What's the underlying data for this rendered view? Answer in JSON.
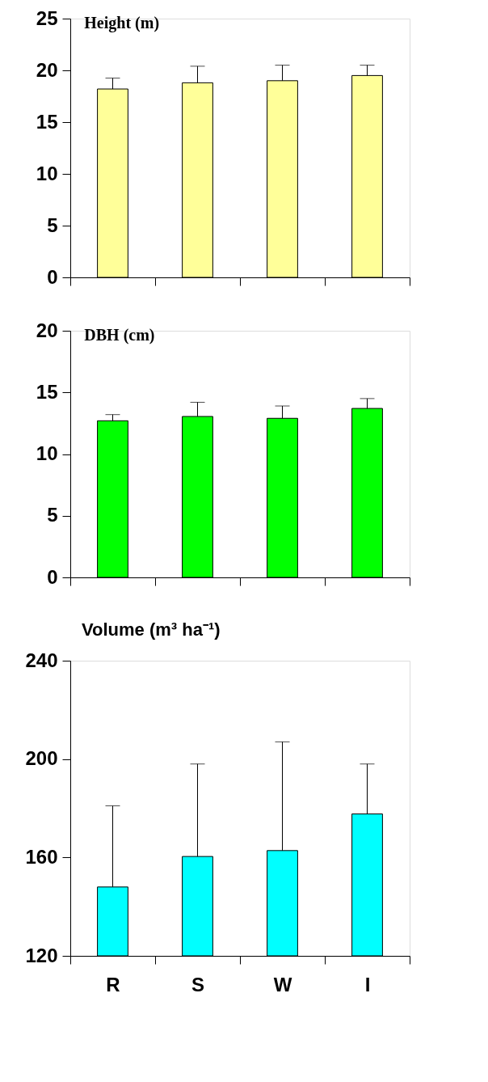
{
  "chart_data": [
    {
      "type": "bar",
      "title": "Height (m)",
      "categories": [
        null,
        null,
        null,
        null
      ],
      "values": [
        18.2,
        18.8,
        19.0,
        19.5
      ],
      "errors": [
        [
          18.2,
          19.25
        ],
        [
          18.8,
          20.4
        ],
        [
          19.0,
          20.5
        ],
        [
          19.5,
          20.5
        ]
      ],
      "color": "#ffff99",
      "ylim": [
        0,
        25
      ],
      "yticks": [
        0,
        5,
        10,
        15,
        20,
        25
      ],
      "tick_labels": "y",
      "grid": false
    },
    {
      "type": "bar",
      "title": "DBH (cm)",
      "categories": [
        null,
        null,
        null,
        null
      ],
      "values": [
        12.7,
        13.05,
        12.9,
        13.7
      ],
      "errors": [
        [
          12.7,
          13.2
        ],
        [
          13.05,
          14.2
        ],
        [
          12.9,
          13.9
        ],
        [
          13.7,
          14.5
        ]
      ],
      "color": "#00ff00",
      "ylim": [
        0,
        20
      ],
      "yticks": [
        0,
        5,
        10,
        15,
        20
      ],
      "tick_labels": "y",
      "grid": false
    },
    {
      "type": "bar",
      "title": "Volume (m³ ha⁻¹)",
      "categories": [
        "R",
        "S",
        "W",
        "I"
      ],
      "values": [
        148,
        160.4,
        162.8,
        177.7
      ],
      "errors": [
        [
          148,
          181
        ],
        [
          160.4,
          198
        ],
        [
          162.8,
          207
        ],
        [
          177.7,
          198
        ]
      ],
      "color": "#00ffff",
      "ylim": [
        120,
        240
      ],
      "yticks": [
        120,
        160,
        200,
        240
      ],
      "grid": false
    }
  ]
}
